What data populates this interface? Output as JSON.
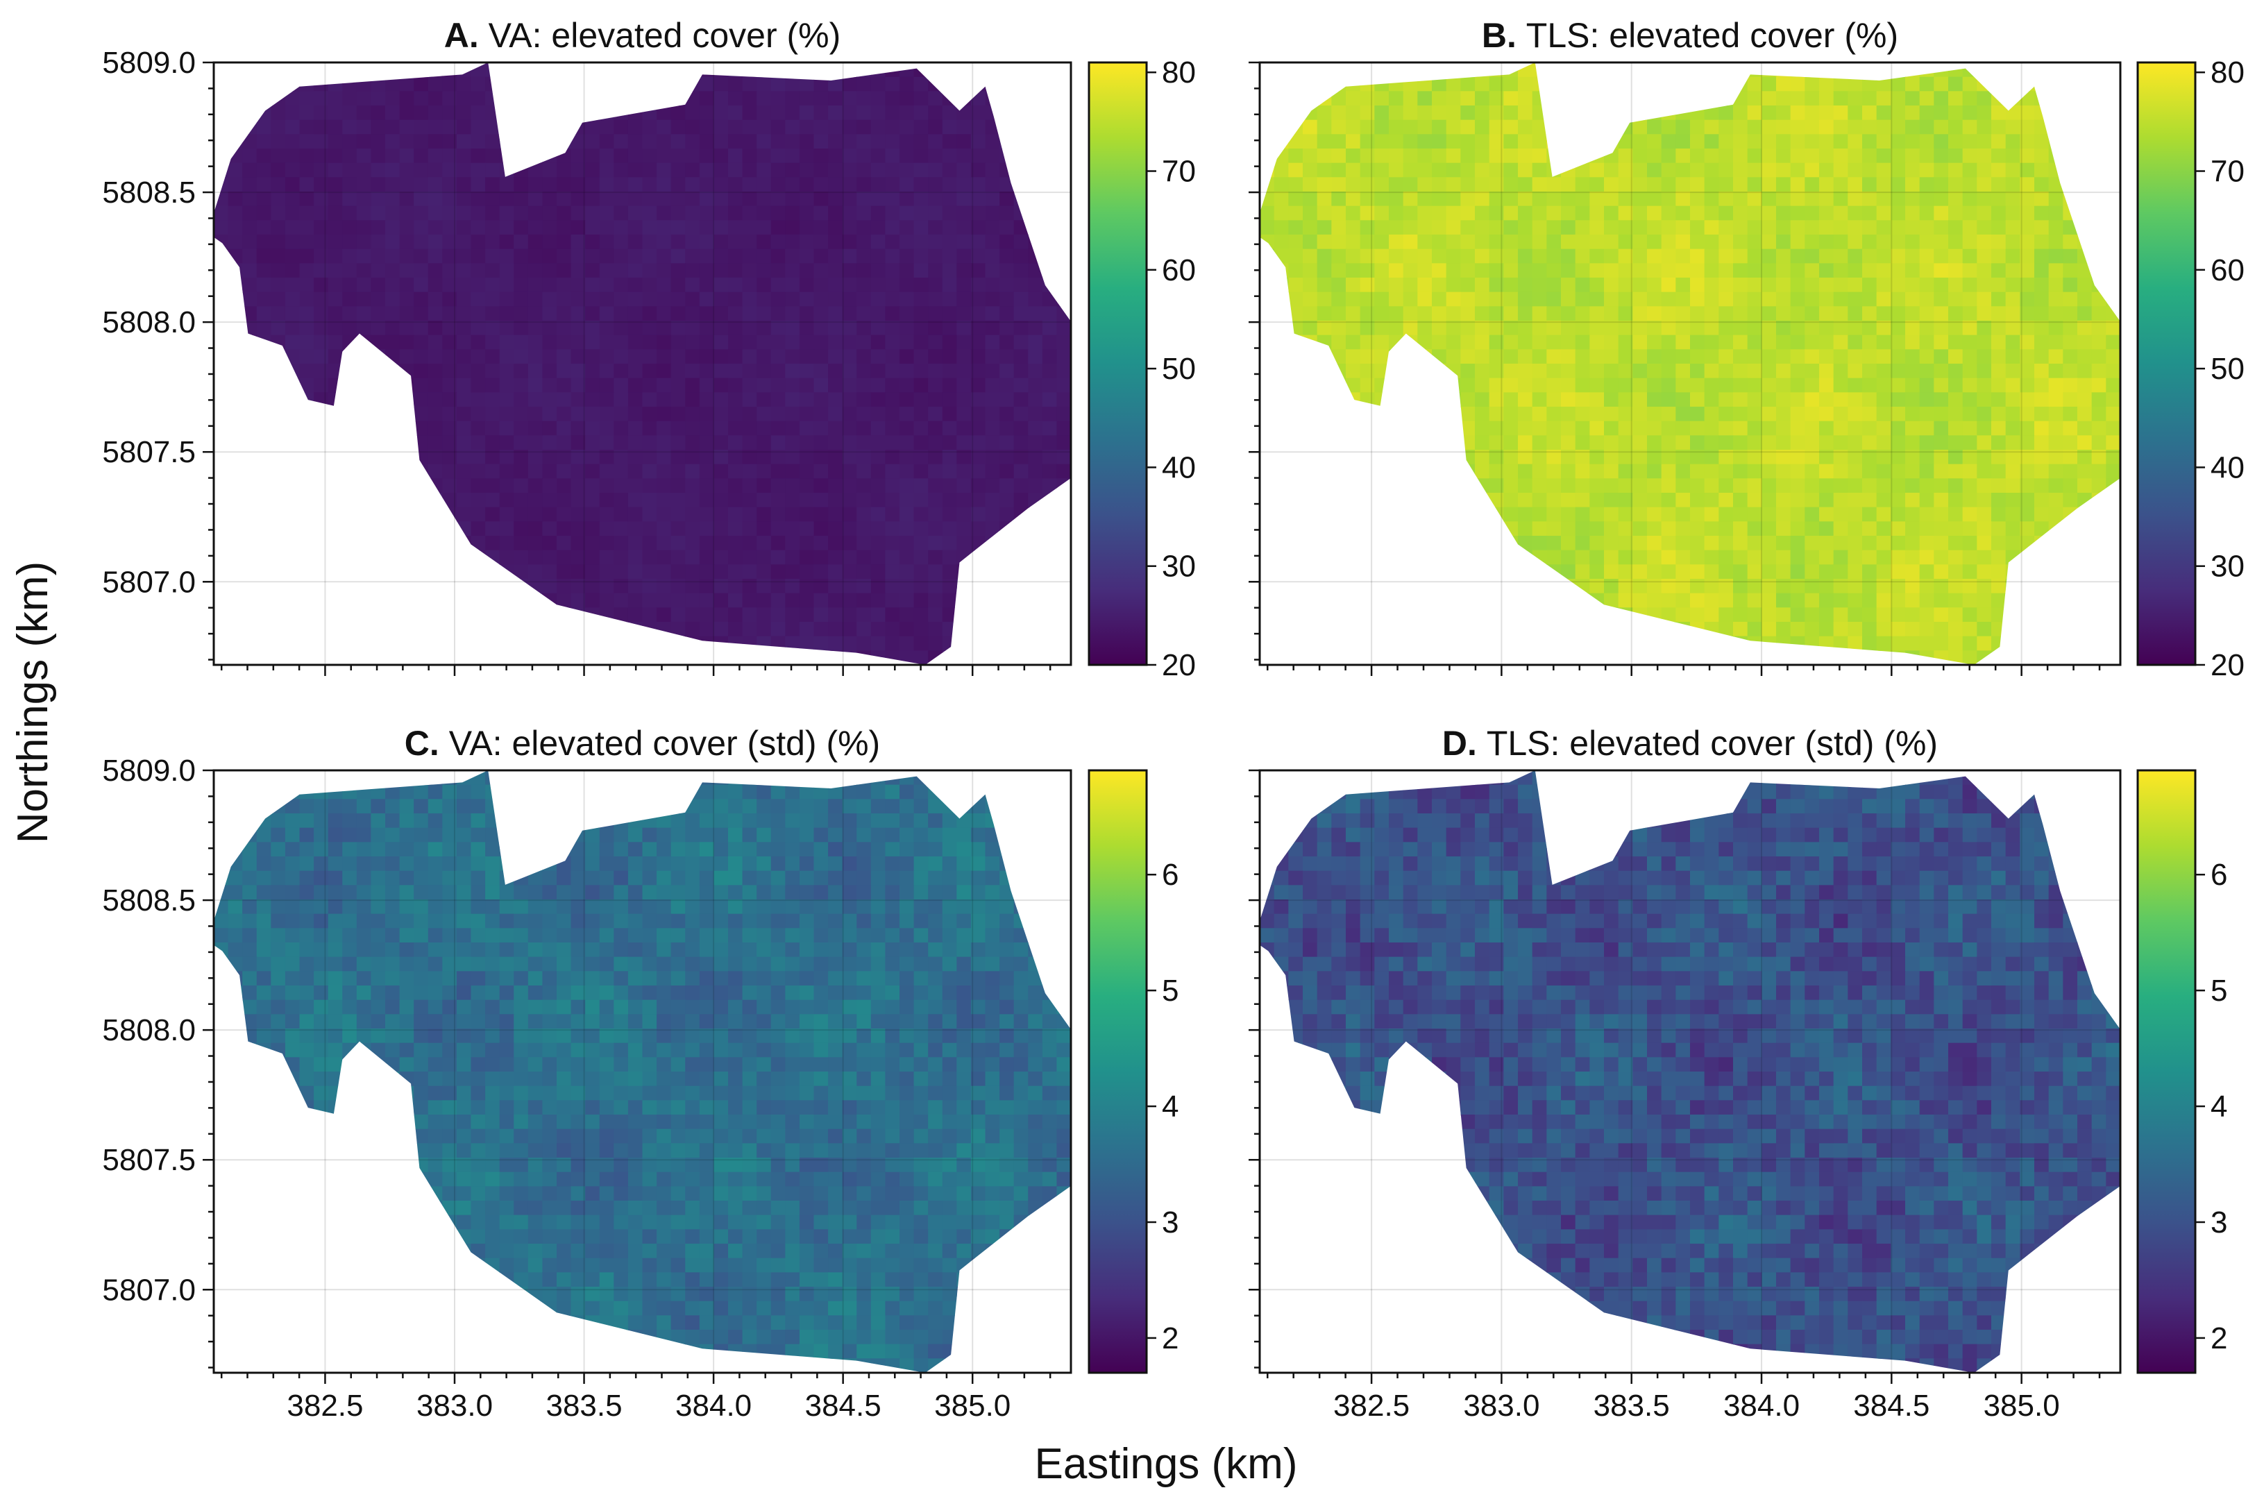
{
  "figure": {
    "xlabel": "Eastings (km)",
    "ylabel": "Northings (km)"
  },
  "chart_data": [
    {
      "type": "heatmap",
      "letter": "A.",
      "title": "VA: elevated cover (%)",
      "xlim": [
        382.07,
        385.38
      ],
      "ylim": [
        5806.68,
        5809.0
      ],
      "xticks": [
        "382.5",
        "383.0",
        "383.5",
        "384.0",
        "384.5",
        "385.0"
      ],
      "yticks": [
        "5809.0",
        "5808.5",
        "5808.0",
        "5807.5",
        "5807.0"
      ],
      "show_xticklabels": false,
      "show_yticklabels": true,
      "colorbar": {
        "range": [
          20,
          81
        ],
        "ticks": [
          "80",
          "70",
          "60",
          "50",
          "40",
          "30",
          "20"
        ]
      },
      "approx_value": 24,
      "spread": 1.0
    },
    {
      "type": "heatmap",
      "letter": "B.",
      "title": "TLS: elevated cover (%)",
      "xlim": [
        382.07,
        385.38
      ],
      "ylim": [
        5806.68,
        5809.0
      ],
      "xticks": [
        "382.5",
        "383.0",
        "383.5",
        "384.0",
        "384.5",
        "385.0"
      ],
      "yticks": [
        "5809.0",
        "5808.5",
        "5808.0",
        "5807.5",
        "5807.0"
      ],
      "show_xticklabels": false,
      "show_yticklabels": false,
      "colorbar": {
        "range": [
          20,
          81
        ],
        "ticks": [
          "80",
          "70",
          "60",
          "50",
          "40",
          "30",
          "20"
        ]
      },
      "approx_value": 75,
      "spread": 2.5
    },
    {
      "type": "heatmap",
      "letter": "C.",
      "title": "VA: elevated cover (std) (%)",
      "xlim": [
        382.07,
        385.38
      ],
      "ylim": [
        5806.68,
        5809.0
      ],
      "xticks": [
        "382.5",
        "383.0",
        "383.5",
        "384.0",
        "384.5",
        "385.0"
      ],
      "yticks": [
        "5809.0",
        "5808.5",
        "5808.0",
        "5807.5",
        "5807.0"
      ],
      "show_xticklabels": true,
      "show_yticklabels": true,
      "colorbar": {
        "range": [
          1.7,
          6.9
        ],
        "ticks": [
          "6",
          "5",
          "4",
          "3",
          "2"
        ]
      },
      "approx_value": 3.6,
      "spread": 0.35
    },
    {
      "type": "heatmap",
      "letter": "D.",
      "title": "TLS: elevated cover (std) (%)",
      "xlim": [
        382.07,
        385.38
      ],
      "ylim": [
        5806.68,
        5809.0
      ],
      "xticks": [
        "382.5",
        "383.0",
        "383.5",
        "384.0",
        "384.5",
        "385.0"
      ],
      "yticks": [
        "5809.0",
        "5808.5",
        "5808.0",
        "5807.5",
        "5807.0"
      ],
      "show_xticklabels": true,
      "show_yticklabels": false,
      "colorbar": {
        "range": [
          1.7,
          6.9
        ],
        "ticks": [
          "6",
          "5",
          "4",
          "3",
          "2"
        ]
      },
      "approx_value": 3.0,
      "spread": 0.45
    }
  ]
}
